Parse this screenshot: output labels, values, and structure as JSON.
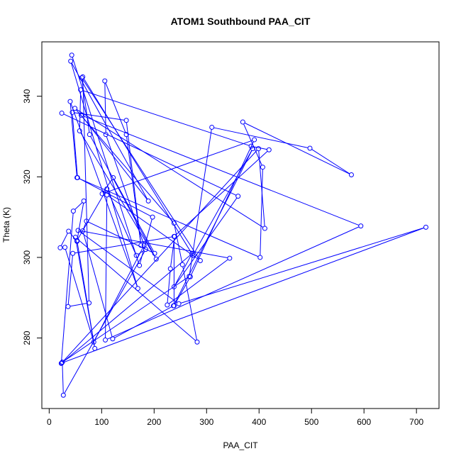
{
  "chart_data": {
    "type": "line",
    "title": "ATOM1 Southbound PAA_CIT",
    "xlabel": "PAA_CIT",
    "ylabel": "Theta (K)",
    "xlim": [
      -14,
      743
    ],
    "ylim": [
      262.5,
      353.5
    ],
    "x_ticks": [
      0,
      100,
      200,
      300,
      400,
      500,
      600,
      700
    ],
    "y_ticks": [
      280,
      300,
      320,
      340
    ],
    "grid": false,
    "marker": "open-circle",
    "series": [
      {
        "color": "#0000ff",
        "points": [
          [
            43,
            350.2
          ],
          [
            172,
            298.0
          ],
          [
            197,
            310.0
          ],
          [
            54,
            319.8
          ],
          [
            44,
            336.0
          ],
          [
            147,
            334.0
          ],
          [
            175,
            303.0
          ],
          [
            147,
            330.5
          ],
          [
            106,
            343.8
          ],
          [
            108,
            330.5
          ],
          [
            181,
            303.0
          ],
          [
            85,
            279.0
          ],
          [
            30,
            302.5
          ],
          [
            21,
            302.4
          ],
          [
            37,
            306.5
          ],
          [
            53,
            304.0
          ],
          [
            66,
            314.0
          ],
          [
            46,
            311.5
          ],
          [
            23,
            273.7
          ],
          [
            399,
            327.0
          ],
          [
            411,
            307.2
          ],
          [
            49,
            337.0
          ],
          [
            238,
            308.5
          ],
          [
            254,
            298.2
          ],
          [
            282,
            279.0
          ],
          [
            50,
            305.0
          ],
          [
            87,
            277.4
          ],
          [
            53,
            304.2
          ],
          [
            110,
            317.0
          ],
          [
            166,
            300.5
          ],
          [
            184,
            302.0
          ],
          [
            27,
            265.8
          ],
          [
            25,
            274.0
          ],
          [
            267,
            295.3
          ],
          [
            310,
            332.3
          ],
          [
            497,
            327.1
          ],
          [
            576,
            320.5
          ],
          [
            369,
            333.6
          ],
          [
            407,
            322.4
          ],
          [
            402,
            300.0
          ],
          [
            53,
            319.8
          ],
          [
            40,
            338.7
          ],
          [
            169,
            292.3
          ],
          [
            41,
            348.7
          ],
          [
            189,
            314.0
          ],
          [
            61,
            335.3
          ],
          [
            594,
            307.8
          ],
          [
            107,
            279.5
          ],
          [
            110,
            315.5
          ],
          [
            288,
            299.2
          ],
          [
            62,
            344.6
          ],
          [
            77,
            330.5
          ],
          [
            204,
            299.6
          ],
          [
            58,
            331.4
          ],
          [
            60,
            341.6
          ],
          [
            385,
            327.6
          ],
          [
            419,
            326.7
          ],
          [
            238,
            305.2
          ],
          [
            238,
            288.0
          ],
          [
            269,
            295.2
          ],
          [
            391,
            329.2
          ],
          [
            101,
            315.8
          ],
          [
            122,
            319.8
          ],
          [
            201,
            301.0
          ],
          [
            71,
            309.0
          ],
          [
            64,
            306.6
          ],
          [
            121,
            279.8
          ],
          [
            237,
            288.0
          ],
          [
            388,
            327.0
          ],
          [
            274,
            300.5
          ],
          [
            64,
            344.8
          ],
          [
            76,
            288.7
          ],
          [
            36,
            287.8
          ],
          [
            45,
            301.0
          ],
          [
            239,
            305.2
          ],
          [
            231,
            297.2
          ],
          [
            225,
            288.2
          ],
          [
            344,
            299.8
          ],
          [
            55,
            306.7
          ],
          [
            247,
            288.5
          ],
          [
            718,
            307.5
          ],
          [
            24,
            273.8
          ],
          [
            272,
            300.9
          ],
          [
            238,
            292.7
          ],
          [
            360,
            315.2
          ],
          [
            24,
            335.8
          ]
        ]
      }
    ]
  }
}
